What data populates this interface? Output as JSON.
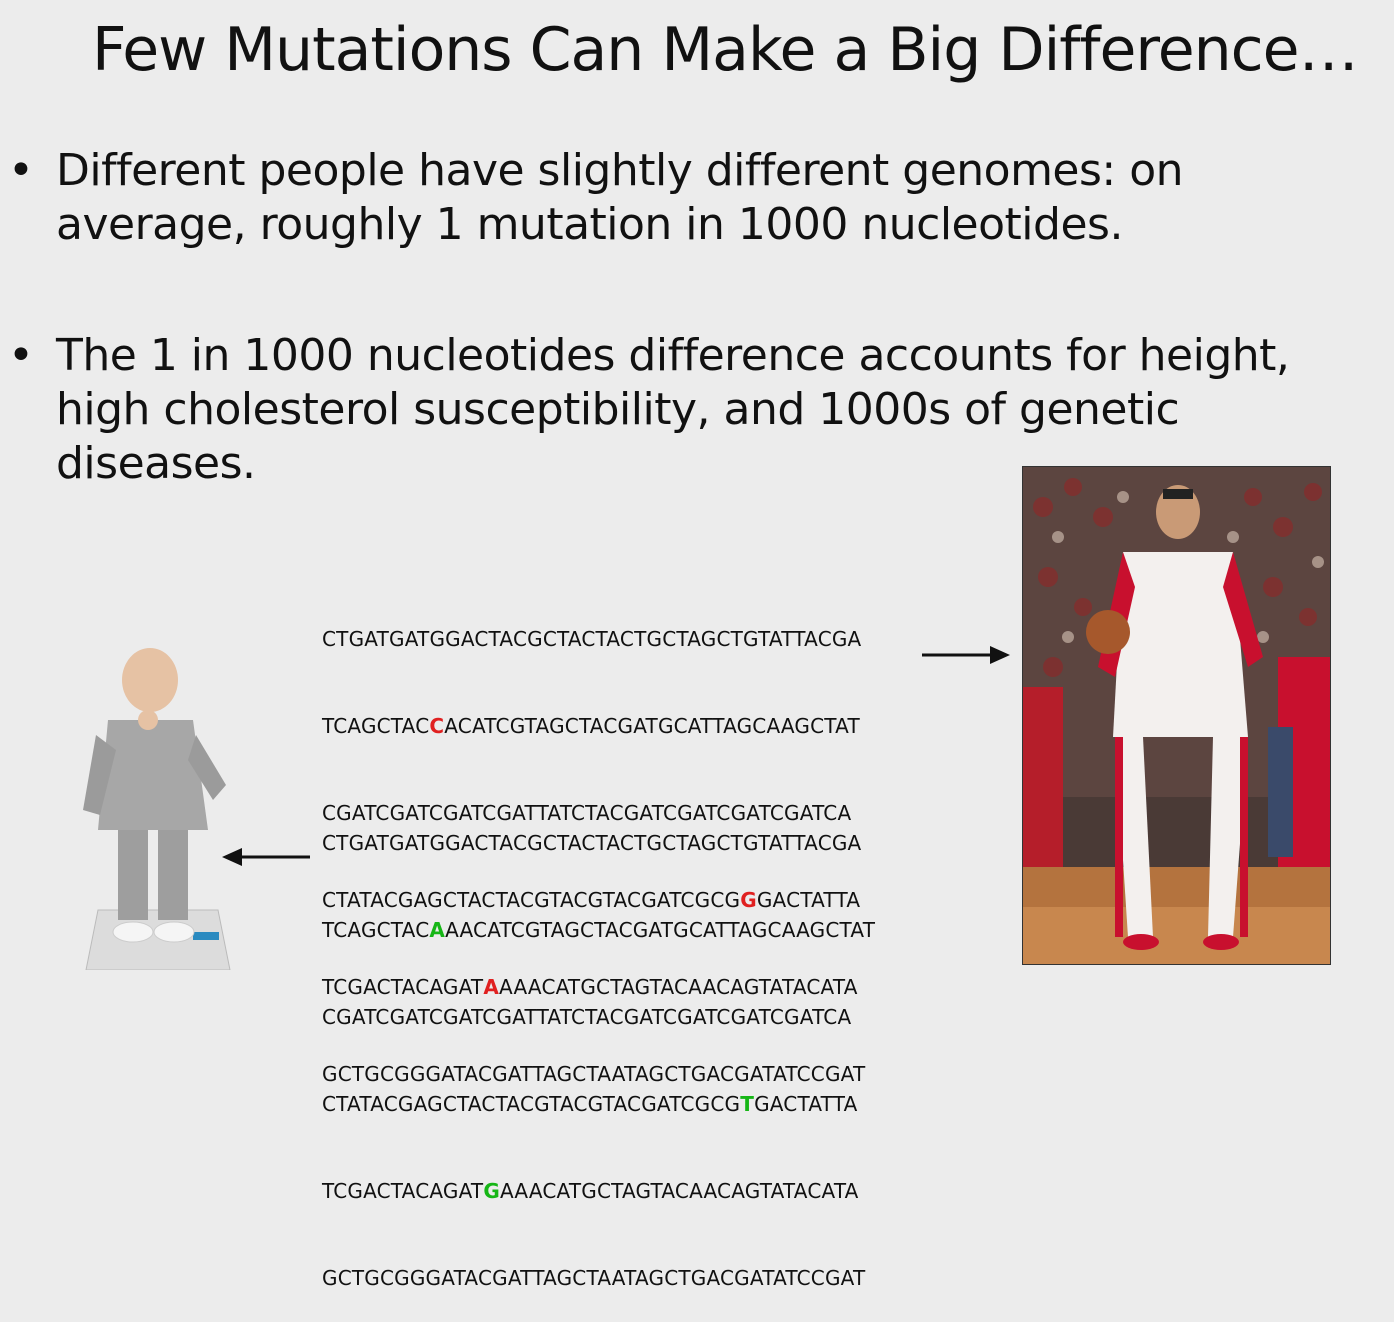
{
  "slide": {
    "title": "Few Mutations Can Make a Big Difference…",
    "bullets": [
      {
        "marker": "•",
        "lines": [
          "Different people have slightly different genomes: on",
          "average, roughly 1 mutation in 1000 nucleotides."
        ]
      },
      {
        "marker": "•",
        "lines": [
          "The 1 in 1000 nucleotides difference  accounts for height,",
          "high cholesterol susceptibility, and 1000s of genetic",
          "diseases."
        ]
      }
    ]
  },
  "sequence_tall": [
    {
      "pre": "CTGATGATGGACTACGCTACTACTGCTAGCTGTATTACGA",
      "mut": "",
      "post": ""
    },
    {
      "pre": "TCAGCTAC",
      "mut": "C",
      "post": "ACATCGTAGCTACGATGCATTAGCAAGCTAT"
    },
    {
      "pre": "CGATCGATCGATCGATTATCTACGATCGATCGATCGATCA",
      "mut": "",
      "post": ""
    },
    {
      "pre": "CTATACGAGCTACTACGTACGTACGATCGCG",
      "mut": "G",
      "post": "GACTATTA"
    },
    {
      "pre": "TCGACTACAGAT",
      "mut": "A",
      "post": "AAACATGCTAGTACAACAGTATACATA"
    },
    {
      "pre": "GCTGCGGGATACGATTAGCTAATAGCTGACGATATCCGAT",
      "mut": "",
      "post": ""
    }
  ],
  "sequence_short": [
    {
      "pre": "CTGATGATGGACTACGCTACTACTGCTAGCTGTATTACGA",
      "mut": "",
      "post": ""
    },
    {
      "pre": "TCAGCTAC",
      "mut": "A",
      "post": "AACATCGTAGCTACGATGCATTAGCAAGCTAT"
    },
    {
      "pre": "CGATCGATCGATCGATTATCTACGATCGATCGATCGATCA",
      "mut": "",
      "post": ""
    },
    {
      "pre": "CTATACGAGCTACTACGTACGTACGATCGCG",
      "mut": "T",
      "post": "GACTATTA"
    },
    {
      "pre": "TCGACTACAGAT",
      "mut": "G",
      "post": "AAACATGCTAGTACAACAGTATACATA"
    },
    {
      "pre": "GCTGCGGGATACGATTAGCTAATAGCTGACGATATCCGAT",
      "mut": "",
      "post": ""
    }
  ],
  "colors": {
    "background": "#ececec",
    "mutation_tall": "#e02020",
    "mutation_short": "#16b616",
    "jersey_red": "#c8102e"
  },
  "icons": {
    "arrow_right": "arrow-right-icon",
    "arrow_left": "arrow-left-icon"
  }
}
